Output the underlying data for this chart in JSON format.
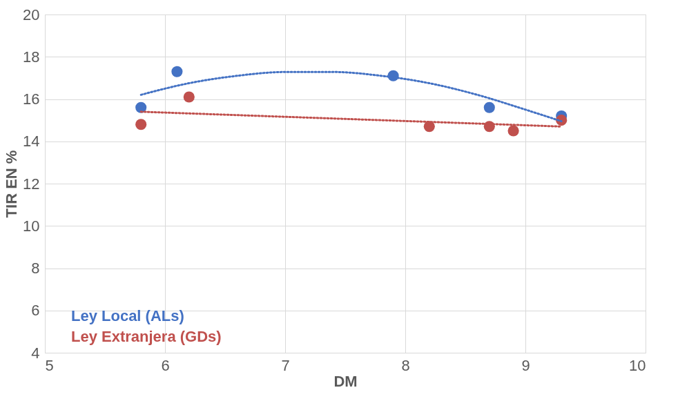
{
  "chart_data": {
    "type": "scatter",
    "xlabel": "DM",
    "ylabel": "TIR EN %",
    "xlim": [
      5,
      10
    ],
    "ylim": [
      4,
      20
    ],
    "xticks": [
      5,
      6,
      7,
      8,
      9,
      10
    ],
    "yticks": [
      4,
      6,
      8,
      10,
      12,
      14,
      16,
      18,
      20
    ],
    "grid": true,
    "legend": "bottom left",
    "marker": "circle",
    "series": [
      {
        "name": "Ley Local (ALs)",
        "color": "#4472c4",
        "x": [
          5.8,
          6.1,
          7.9,
          8.7,
          9.3
        ],
        "values": [
          15.6,
          17.3,
          17.1,
          15.6,
          15.2
        ]
      },
      {
        "name": "Ley Extranjera (GDs)",
        "color": "#c0504d",
        "x": [
          5.8,
          6.2,
          8.2,
          8.7,
          8.9,
          9.3
        ],
        "values": [
          14.8,
          16.1,
          14.7,
          14.7,
          14.5,
          15.0
        ]
      },
      {
        "type": "line",
        "color": "#4472c4",
        "line_style": "dotted",
        "marker": "none",
        "x": [
          5.8,
          6.2,
          6.6,
          7.0,
          7.4,
          7.8,
          8.2,
          8.6,
          9.0,
          9.3
        ],
        "values": [
          16.2,
          16.75,
          17.1,
          17.28,
          17.28,
          17.1,
          16.75,
          16.2,
          15.5,
          14.95
        ]
      },
      {
        "type": "line",
        "color": "#c0504d",
        "line_style": "dotted",
        "marker": "none",
        "x": [
          5.8,
          9.3
        ],
        "values": [
          15.4,
          14.7
        ]
      }
    ]
  }
}
